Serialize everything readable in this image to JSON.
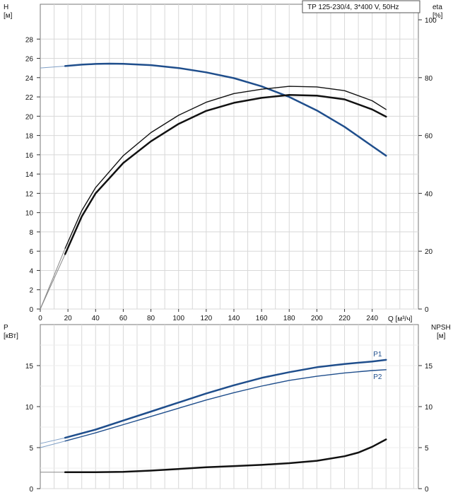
{
  "chart_data": [
    {
      "type": "line",
      "title": "TP 125-230/4, 3*400 V, 50Hz",
      "x_axis": {
        "label": "Q [м³/ч]",
        "range": [
          0,
          280
        ],
        "ticks": [
          0,
          20,
          40,
          60,
          80,
          100,
          120,
          140,
          160,
          180,
          200,
          220,
          240
        ]
      },
      "left_axis": {
        "label_line1": "H",
        "label_line2": "[м]",
        "range": [
          0,
          30
        ],
        "ticks": [
          0,
          2,
          4,
          6,
          8,
          10,
          12,
          14,
          16,
          18,
          20,
          22,
          24,
          26,
          28
        ]
      },
      "right_axis": {
        "label_line1": "eta",
        "label_line2": "[%]",
        "range": [
          0,
          100
        ],
        "ticks": [
          0,
          20,
          40,
          60,
          80,
          100
        ]
      },
      "grid": true,
      "series": [
        {
          "axis": "left",
          "color": "#1f4e8c",
          "x": [
            18,
            30,
            40,
            50,
            60,
            80,
            100,
            120,
            140,
            160,
            180,
            200,
            220,
            240,
            250
          ],
          "y": [
            25.2,
            25.35,
            25.42,
            25.45,
            25.43,
            25.3,
            25.0,
            24.55,
            23.95,
            23.1,
            22.0,
            20.6,
            18.9,
            16.9,
            15.9
          ]
        },
        {
          "axis": "right",
          "color": "#111111",
          "x": [
            18,
            30,
            40,
            60,
            80,
            100,
            120,
            140,
            160,
            180,
            200,
            220,
            240,
            250
          ],
          "y": [
            21,
            34,
            42,
            53,
            61,
            67,
            71.5,
            74.5,
            76,
            77,
            76.8,
            75.5,
            72,
            69
          ]
        },
        {
          "axis": "right",
          "color": "#111111",
          "x": [
            18,
            30,
            40,
            60,
            80,
            100,
            120,
            140,
            160,
            180,
            200,
            220,
            240,
            250
          ],
          "y": [
            19,
            32,
            40,
            50.5,
            58,
            64,
            68.5,
            71.3,
            73,
            74,
            73.8,
            72.5,
            69,
            66.5
          ]
        }
      ]
    },
    {
      "type": "line",
      "x_axis": {
        "range": [
          0,
          280
        ],
        "ticks": [
          0,
          20,
          40,
          60,
          80,
          100,
          120,
          140,
          160,
          180,
          200,
          220,
          240
        ]
      },
      "left_axis": {
        "label_line1": "P",
        "label_line2": "[кВт]",
        "range": [
          0,
          20
        ],
        "ticks": [
          0,
          5,
          10,
          15
        ]
      },
      "right_axis": {
        "label_line1": "NPSH",
        "label_line2": "[м]",
        "range": [
          0,
          20
        ],
        "ticks": [
          0,
          5,
          10,
          15
        ]
      },
      "grid": true,
      "series": [
        {
          "name": "P1",
          "axis": "left",
          "color": "#1f4e8c",
          "x": [
            18,
            40,
            60,
            80,
            100,
            120,
            140,
            160,
            180,
            200,
            220,
            240,
            250
          ],
          "y": [
            6.2,
            7.2,
            8.3,
            9.4,
            10.5,
            11.6,
            12.6,
            13.5,
            14.2,
            14.8,
            15.2,
            15.5,
            15.7
          ]
        },
        {
          "name": "P2",
          "axis": "left",
          "color": "#1f4e8c",
          "x": [
            18,
            40,
            60,
            80,
            100,
            120,
            140,
            160,
            180,
            200,
            220,
            240,
            250
          ],
          "y": [
            5.8,
            6.8,
            7.8,
            8.8,
            9.8,
            10.8,
            11.7,
            12.5,
            13.2,
            13.7,
            14.1,
            14.4,
            14.5
          ]
        },
        {
          "axis": "right",
          "color": "#111111",
          "x": [
            18,
            40,
            60,
            80,
            100,
            120,
            140,
            160,
            180,
            200,
            220,
            230,
            240,
            250
          ],
          "y": [
            2.0,
            2.0,
            2.05,
            2.2,
            2.4,
            2.6,
            2.75,
            2.9,
            3.1,
            3.4,
            3.95,
            4.4,
            5.1,
            6.0
          ]
        }
      ]
    }
  ]
}
